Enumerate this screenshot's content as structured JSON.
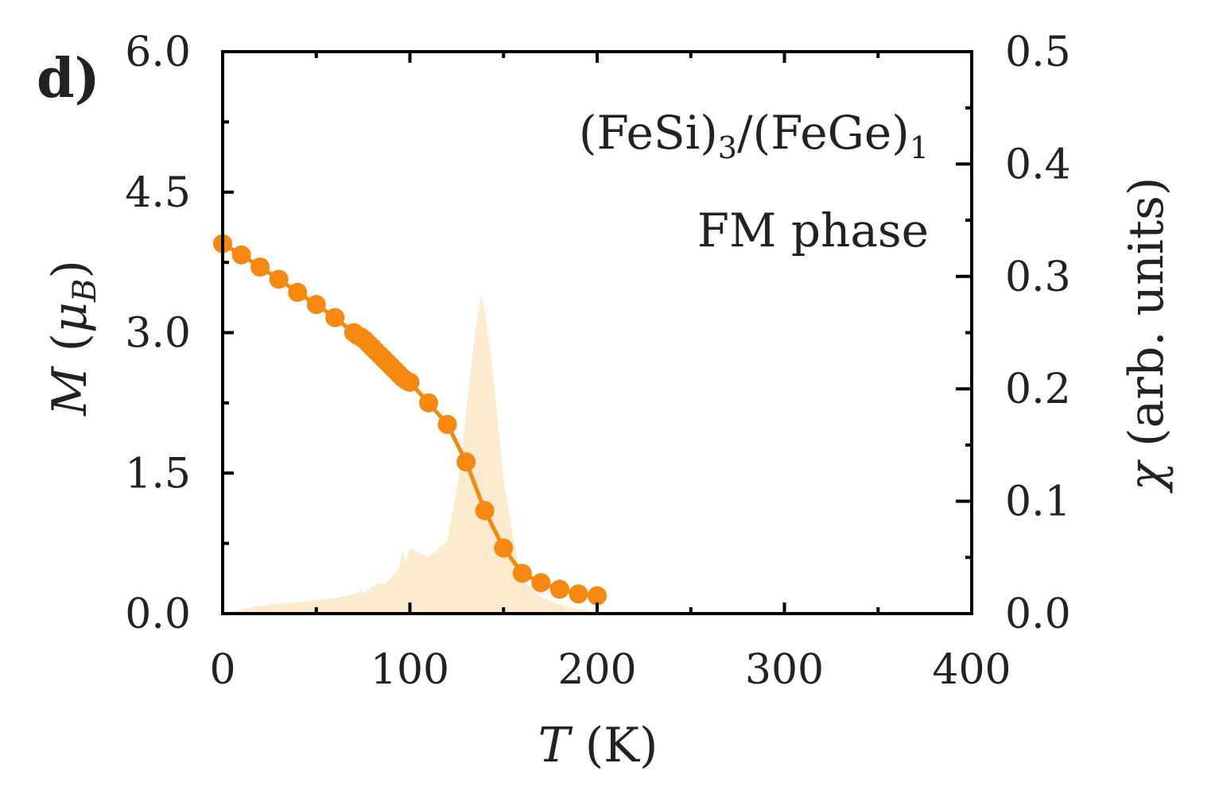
{
  "panel_label": "d)",
  "annotation": {
    "line1": "(FeSi)",
    "line1_sub1": "3",
    "line1_mid": "/(FeGe)",
    "line1_sub2": "1",
    "line2": "FM phase"
  },
  "axes": {
    "x": {
      "label_var": "T",
      "label_unit": " (K)",
      "ticks": [
        "0",
        "100",
        "200",
        "300",
        "400"
      ]
    },
    "y_left": {
      "label_var": "M",
      "label_unit_open": " (",
      "label_mu": "μ",
      "label_sub": "B",
      "label_unit_close": ")",
      "ticks": [
        "0.0",
        "1.5",
        "3.0",
        "4.5",
        "6.0"
      ]
    },
    "y_right": {
      "label_var": "χ",
      "label_unit": " (arb. units)",
      "ticks": [
        "0.0",
        "0.1",
        "0.2",
        "0.3",
        "0.4",
        "0.5"
      ]
    }
  },
  "colors": {
    "magnetization": "#f7880f",
    "susceptibility_fill": "#fdebcf",
    "axis": "#000000"
  },
  "chart_data": {
    "type": "line",
    "xlim": [
      0,
      400
    ],
    "ylim_left": [
      0,
      6.0
    ],
    "ylim_right": [
      0,
      0.5
    ],
    "series": [
      {
        "name": "M",
        "axis": "left",
        "style": "line+markers",
        "x": [
          0,
          10,
          20,
          30,
          40,
          50,
          60,
          70,
          72,
          74,
          76,
          78,
          80,
          82,
          84,
          86,
          88,
          90,
          92,
          94,
          96,
          98,
          100,
          110,
          120,
          130,
          140,
          150,
          160,
          170,
          180,
          190,
          200
        ],
        "y": [
          3.95,
          3.83,
          3.7,
          3.57,
          3.43,
          3.3,
          3.16,
          3.0,
          2.97,
          2.95,
          2.92,
          2.88,
          2.84,
          2.8,
          2.76,
          2.72,
          2.68,
          2.64,
          2.6,
          2.56,
          2.52,
          2.49,
          2.47,
          2.25,
          2.02,
          1.62,
          1.1,
          0.7,
          0.43,
          0.33,
          0.26,
          0.21,
          0.19
        ]
      },
      {
        "name": "χ",
        "axis": "right",
        "style": "filled-area",
        "x": [
          0,
          10,
          20,
          30,
          40,
          50,
          60,
          70,
          74,
          76,
          80,
          84,
          86,
          90,
          94,
          96,
          98,
          100,
          104,
          110,
          120,
          126,
          130,
          134,
          138,
          140,
          144,
          150,
          156,
          160,
          170,
          180,
          190,
          200
        ],
        "y": [
          0.0,
          0.004,
          0.007,
          0.009,
          0.01,
          0.012,
          0.014,
          0.017,
          0.021,
          0.018,
          0.024,
          0.028,
          0.025,
          0.032,
          0.04,
          0.056,
          0.045,
          0.058,
          0.055,
          0.05,
          0.065,
          0.12,
          0.18,
          0.24,
          0.285,
          0.27,
          0.22,
          0.12,
          0.06,
          0.03,
          0.015,
          0.008,
          0.004,
          0.002
        ]
      }
    ]
  }
}
